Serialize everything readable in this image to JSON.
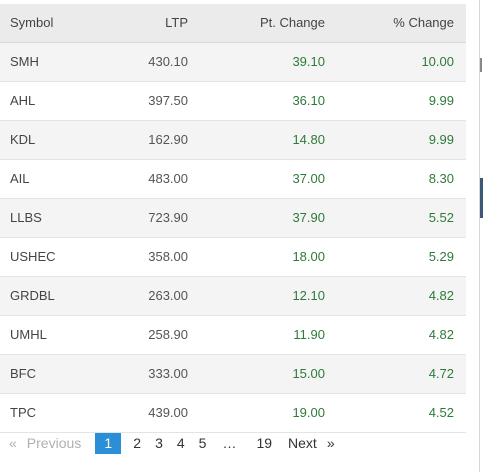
{
  "table": {
    "headers": {
      "symbol": "Symbol",
      "ltp": "LTP",
      "pt_change": "Pt. Change",
      "pct_change": "% Change"
    },
    "rows": [
      {
        "symbol": "SMH",
        "ltp": "430.10",
        "pt_change": "39.10",
        "pct_change": "10.00"
      },
      {
        "symbol": "AHL",
        "ltp": "397.50",
        "pt_change": "36.10",
        "pct_change": "9.99"
      },
      {
        "symbol": "KDL",
        "ltp": "162.90",
        "pt_change": "14.80",
        "pct_change": "9.99"
      },
      {
        "symbol": "AIL",
        "ltp": "483.00",
        "pt_change": "37.00",
        "pct_change": "8.30"
      },
      {
        "symbol": "LLBS",
        "ltp": "723.90",
        "pt_change": "37.90",
        "pct_change": "5.52"
      },
      {
        "symbol": "USHEC",
        "ltp": "358.00",
        "pt_change": "18.00",
        "pct_change": "5.29"
      },
      {
        "symbol": "GRDBL",
        "ltp": "263.00",
        "pt_change": "12.10",
        "pct_change": "4.82"
      },
      {
        "symbol": "UMHL",
        "ltp": "258.90",
        "pt_change": "11.90",
        "pct_change": "4.82"
      },
      {
        "symbol": "BFC",
        "ltp": "333.00",
        "pt_change": "15.00",
        "pct_change": "4.72"
      },
      {
        "symbol": "TPC",
        "ltp": "439.00",
        "pt_change": "19.00",
        "pct_change": "4.52"
      }
    ]
  },
  "pagination": {
    "prev_arrow": "«",
    "prev_label": "Previous",
    "current": "1",
    "pages": [
      "2",
      "3",
      "4",
      "5"
    ],
    "ellipsis": "…",
    "last": "19",
    "next_label": "Next",
    "next_arrow": "»"
  },
  "colors": {
    "positive": "#2f7a3a",
    "active_page": "#2a8fd6",
    "header_bg": "#ebebeb",
    "stripe_bg": "#f4f4f4"
  }
}
